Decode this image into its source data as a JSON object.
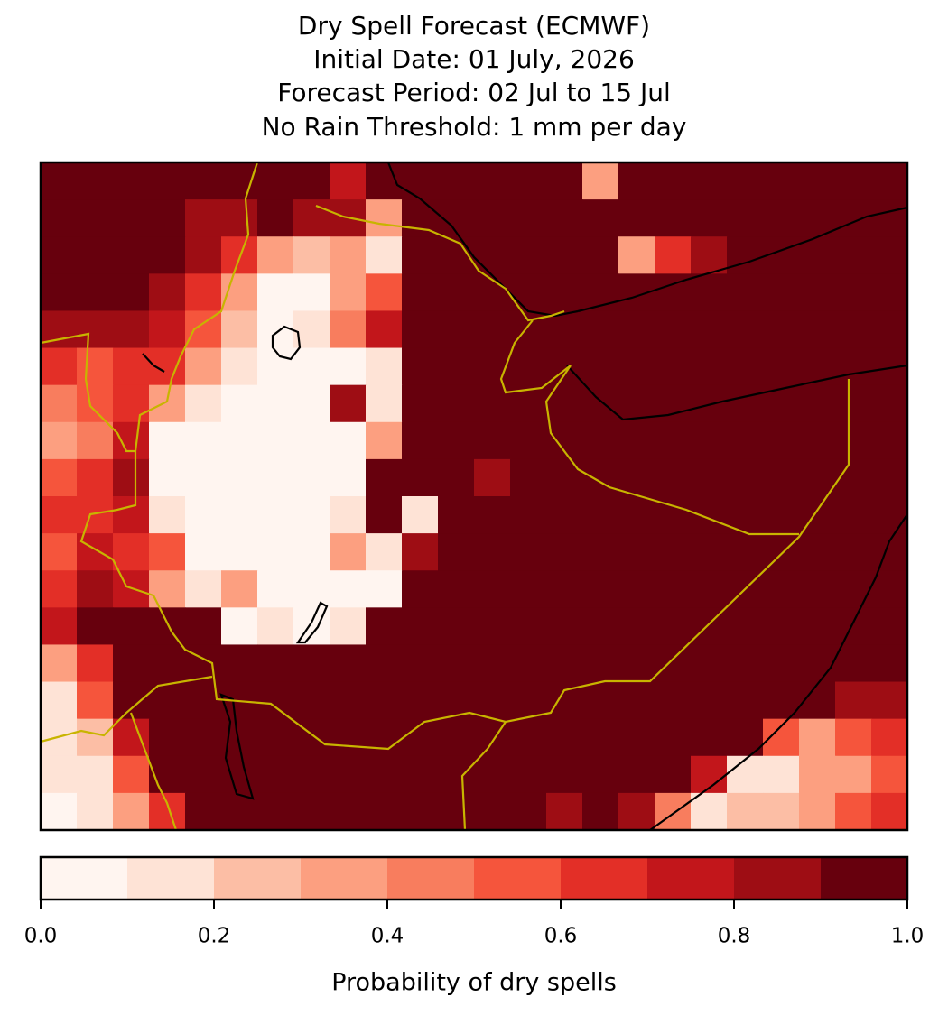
{
  "chart_data": {
    "type": "raster",
    "title": [
      "Dry Spell Forecast (ECMWF)",
      "Initial Date: 01 July, 2026",
      "Forecast Period: 02 Jul to 15 Jul",
      "No Rain Threshold: 1 mm per day"
    ],
    "grid": [
      [
        0.95,
        0.95,
        0.95,
        0.95,
        0.95,
        0.95,
        0.95,
        0.95,
        0.75,
        0.95,
        0.95,
        0.95,
        0.95,
        0.95,
        0.95,
        0.35,
        0.95,
        0.95,
        0.95,
        0.95,
        0.95,
        0.95,
        0.95,
        0.95
      ],
      [
        0.95,
        0.95,
        0.95,
        0.95,
        0.85,
        0.85,
        0.95,
        0.85,
        0.85,
        0.35,
        0.95,
        0.95,
        0.95,
        0.95,
        0.95,
        0.95,
        0.95,
        0.95,
        0.95,
        0.95,
        0.95,
        0.95,
        0.95,
        0.95
      ],
      [
        0.95,
        0.95,
        0.95,
        0.95,
        0.85,
        0.65,
        0.35,
        0.25,
        0.35,
        0.15,
        0.95,
        0.95,
        0.95,
        0.95,
        0.95,
        0.95,
        0.35,
        0.65,
        0.85,
        0.95,
        0.95,
        0.95,
        0.95,
        0.95
      ],
      [
        0.95,
        0.95,
        0.95,
        0.85,
        0.65,
        0.35,
        0.05,
        0.05,
        0.35,
        0.55,
        0.95,
        0.95,
        0.95,
        0.95,
        0.95,
        0.95,
        0.95,
        0.95,
        0.95,
        0.95,
        0.95,
        0.95,
        0.95,
        0.95
      ],
      [
        0.85,
        0.85,
        0.85,
        0.75,
        0.55,
        0.25,
        0.05,
        0.15,
        0.45,
        0.75,
        0.95,
        0.95,
        0.95,
        0.95,
        0.95,
        0.95,
        0.95,
        0.95,
        0.95,
        0.95,
        0.95,
        0.95,
        0.95,
        0.95
      ],
      [
        0.65,
        0.55,
        0.65,
        0.65,
        0.35,
        0.15,
        0.05,
        0.05,
        0.05,
        0.15,
        0.95,
        0.95,
        0.95,
        0.95,
        0.95,
        0.95,
        0.95,
        0.95,
        0.95,
        0.95,
        0.95,
        0.95,
        0.95,
        0.95
      ],
      [
        0.45,
        0.55,
        0.65,
        0.35,
        0.15,
        0.05,
        0.05,
        0.05,
        0.85,
        0.15,
        0.95,
        0.95,
        0.95,
        0.95,
        0.95,
        0.95,
        0.95,
        0.95,
        0.95,
        0.95,
        0.95,
        0.95,
        0.95,
        0.95
      ],
      [
        0.35,
        0.45,
        0.75,
        0.05,
        0.05,
        0.05,
        0.05,
        0.05,
        0.05,
        0.35,
        0.95,
        0.95,
        0.95,
        0.95,
        0.95,
        0.95,
        0.95,
        0.95,
        0.95,
        0.95,
        0.95,
        0.95,
        0.95,
        0.95
      ],
      [
        0.55,
        0.65,
        0.85,
        0.05,
        0.05,
        0.05,
        0.05,
        0.05,
        0.05,
        0.95,
        0.95,
        0.95,
        0.85,
        0.95,
        0.95,
        0.95,
        0.95,
        0.95,
        0.95,
        0.95,
        0.95,
        0.95,
        0.95,
        0.95
      ],
      [
        0.65,
        0.65,
        0.75,
        0.15,
        0.05,
        0.05,
        0.05,
        0.05,
        0.15,
        0.95,
        0.15,
        0.95,
        0.95,
        0.95,
        0.95,
        0.95,
        0.95,
        0.95,
        0.95,
        0.95,
        0.95,
        0.95,
        0.95,
        0.95
      ],
      [
        0.55,
        0.75,
        0.65,
        0.55,
        0.05,
        0.05,
        0.05,
        0.05,
        0.35,
        0.15,
        0.85,
        0.95,
        0.95,
        0.95,
        0.95,
        0.95,
        0.95,
        0.95,
        0.95,
        0.95,
        0.95,
        0.95,
        0.95,
        0.95
      ],
      [
        0.65,
        0.85,
        0.75,
        0.35,
        0.15,
        0.35,
        0.05,
        0.05,
        0.05,
        0.05,
        0.95,
        0.95,
        0.95,
        0.95,
        0.95,
        0.95,
        0.95,
        0.95,
        0.95,
        0.95,
        0.95,
        0.95,
        0.95,
        0.95
      ],
      [
        0.75,
        0.95,
        0.95,
        0.95,
        0.95,
        0.05,
        0.15,
        0.05,
        0.15,
        0.95,
        0.95,
        0.95,
        0.95,
        0.95,
        0.95,
        0.95,
        0.95,
        0.95,
        0.95,
        0.95,
        0.95,
        0.95,
        0.95,
        0.95
      ],
      [
        0.35,
        0.65,
        0.95,
        0.95,
        0.95,
        0.95,
        0.95,
        0.95,
        0.95,
        0.95,
        0.95,
        0.95,
        0.95,
        0.95,
        0.95,
        0.95,
        0.95,
        0.95,
        0.95,
        0.95,
        0.95,
        0.95,
        0.95,
        0.95
      ],
      [
        0.15,
        0.55,
        0.95,
        0.95,
        0.95,
        0.95,
        0.95,
        0.95,
        0.95,
        0.95,
        0.95,
        0.95,
        0.95,
        0.95,
        0.95,
        0.95,
        0.95,
        0.95,
        0.95,
        0.95,
        0.95,
        0.95,
        0.85,
        0.85
      ],
      [
        0.15,
        0.25,
        0.75,
        0.95,
        0.95,
        0.95,
        0.95,
        0.95,
        0.95,
        0.95,
        0.95,
        0.95,
        0.95,
        0.95,
        0.95,
        0.95,
        0.95,
        0.95,
        0.95,
        0.95,
        0.55,
        0.35,
        0.55,
        0.65
      ],
      [
        0.15,
        0.15,
        0.55,
        0.95,
        0.95,
        0.95,
        0.95,
        0.95,
        0.95,
        0.95,
        0.95,
        0.95,
        0.95,
        0.95,
        0.95,
        0.95,
        0.95,
        0.95,
        0.75,
        0.15,
        0.15,
        0.35,
        0.35,
        0.55
      ],
      [
        0.05,
        0.15,
        0.35,
        0.65,
        0.95,
        0.95,
        0.95,
        0.95,
        0.95,
        0.95,
        0.95,
        0.95,
        0.95,
        0.95,
        0.85,
        0.95,
        0.85,
        0.45,
        0.15,
        0.25,
        0.25,
        0.35,
        0.55,
        0.65
      ]
    ],
    "colorbar": {
      "label": "Probability of dry spells",
      "levels": [
        0,
        0.1,
        0.2,
        0.3,
        0.4,
        0.5,
        0.6,
        0.7,
        0.8,
        0.9,
        1
      ],
      "colors": [
        "#fff5f0",
        "#fee3d6",
        "#fcbea5",
        "#fc9f80",
        "#f87d5e",
        "#f5553c",
        "#e32f27",
        "#c2161b",
        "#9e0d14",
        "#67000d"
      ],
      "ticks": [
        {
          "value": 0,
          "label": "0.0"
        },
        0.2,
        0.4,
        0.6,
        0.8,
        {
          "value": 1,
          "label": "1.0"
        }
      ]
    }
  }
}
